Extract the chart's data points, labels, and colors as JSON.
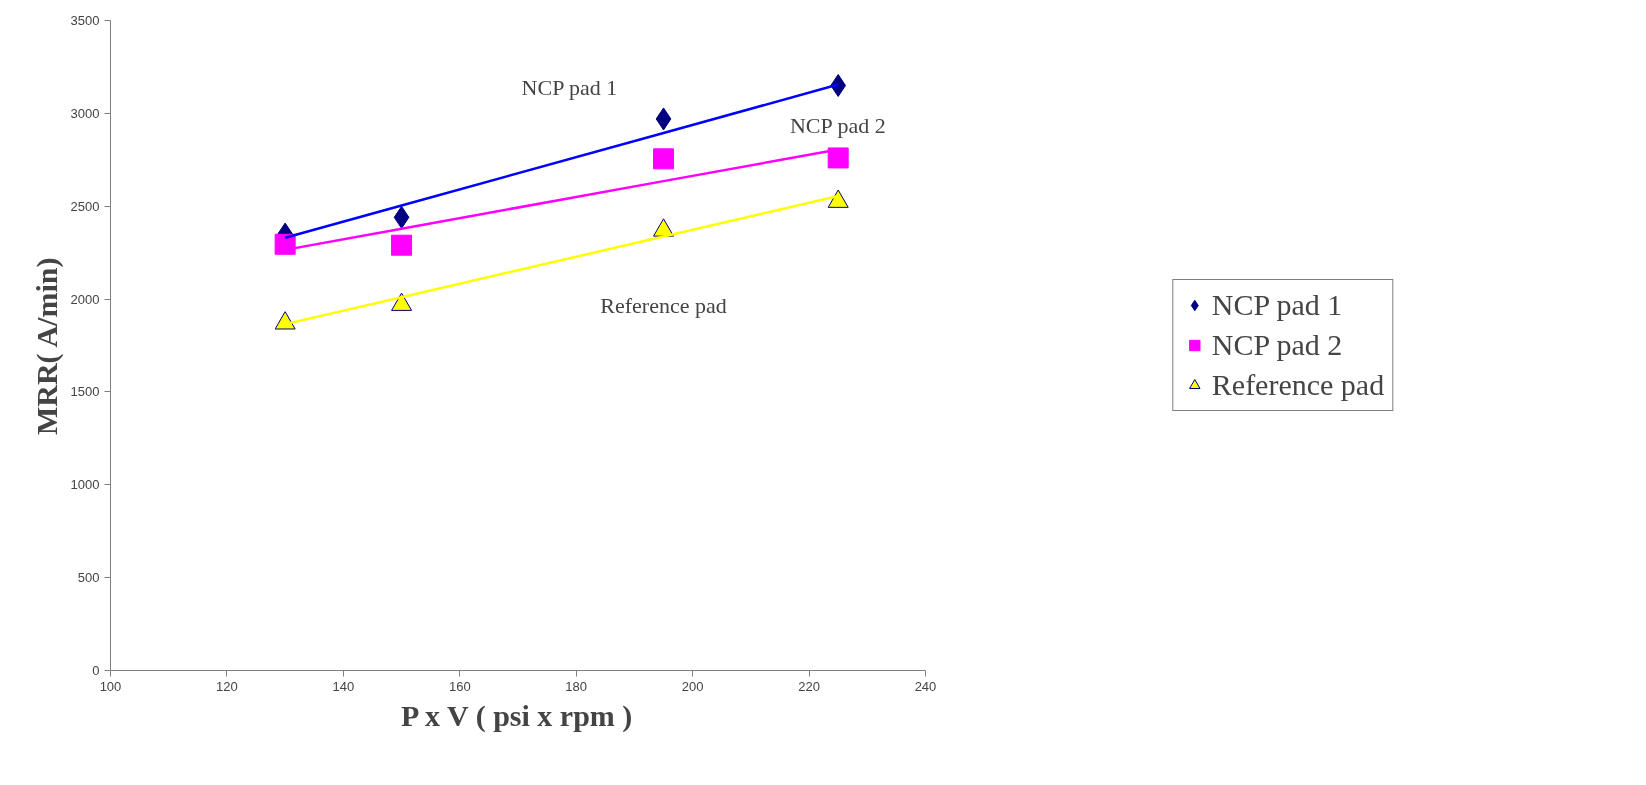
{
  "chart_data": {
    "type": "scatter",
    "xlabel": "P x V ( psi x rpm )",
    "ylabel": "MRR( A/min)",
    "x": [
      130,
      150,
      195,
      225
    ],
    "series": [
      {
        "name": "NCP pad 1",
        "color": "#000080",
        "marker": "diamond",
        "values": [
          2350,
          2440,
          2970,
          3150
        ]
      },
      {
        "name": "NCP pad 2",
        "color": "#ff00ff",
        "marker": "square",
        "values": [
          2295,
          2290,
          2755,
          2760
        ]
      },
      {
        "name": "Reference pad",
        "color": "#ffff00",
        "marker": "triangle",
        "values": [
          1870,
          1970,
          2370,
          2525
        ]
      },
      {
        "type": "line",
        "color": "#0000ff",
        "values": [
          2330,
          2504,
          2894,
          3155
        ]
      },
      {
        "type": "line",
        "color": "#ff00ff",
        "values": [
          2265,
          2379,
          2635,
          2805
        ]
      },
      {
        "type": "line",
        "color": "#ffff00",
        "values": [
          1865,
          2010,
          2337,
          2555
        ]
      }
    ],
    "annotations": [
      "NCP pad 1",
      "NCP pad 2",
      "Reference pad"
    ],
    "xlim": [
      100,
      240
    ],
    "xticks": [
      100,
      120,
      140,
      160,
      180,
      200,
      220,
      240
    ],
    "ylim": [
      0,
      3500
    ],
    "yticks": [
      0,
      500,
      1000,
      1500,
      2000,
      2500,
      3000,
      3500
    ],
    "grid": false,
    "legend": "right"
  }
}
